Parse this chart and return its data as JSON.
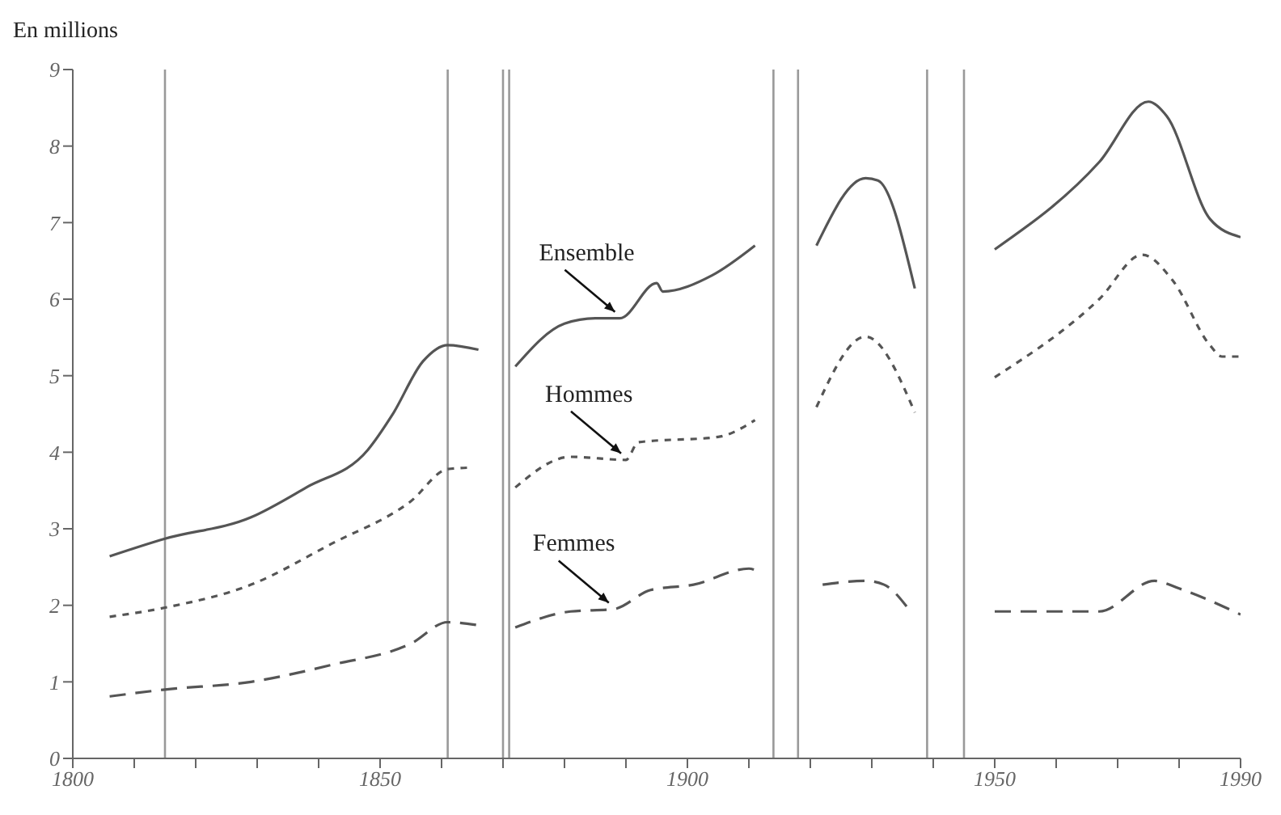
{
  "chart_data": {
    "type": "line",
    "ylabel": "En millions",
    "xlim": [
      1800,
      1990
    ],
    "ylim": [
      0,
      9
    ],
    "xticks": [
      1800,
      {
        "value": 1810,
        "label": null
      },
      {
        "value": 1820,
        "label": null
      },
      {
        "value": 1830,
        "label": null
      },
      {
        "value": 1840,
        "label": null
      },
      1850,
      {
        "value": 1860,
        "label": null
      },
      {
        "value": 1870,
        "label": null
      },
      {
        "value": 1880,
        "label": null
      },
      {
        "value": 1890,
        "label": null
      },
      1900,
      {
        "value": 1910,
        "label": null
      },
      {
        "value": 1920,
        "label": null
      },
      {
        "value": 1930,
        "label": null
      },
      {
        "value": 1940,
        "label": null
      },
      1950,
      {
        "value": 1960,
        "label": null
      },
      {
        "value": 1970,
        "label": null
      },
      {
        "value": 1980,
        "label": null
      },
      1990
    ],
    "yticks": [
      0,
      1,
      2,
      3,
      4,
      5,
      6,
      7,
      8,
      9
    ],
    "legend": false,
    "marker": "none",
    "series": [
      {
        "name": "Ensemble",
        "color": "#555555",
        "line_style": "solid",
        "x": [
          1806,
          1815,
          1829,
          1838,
          1848,
          1852,
          1857,
          1861,
          1866,
          1868,
          1872,
          1880,
          1885,
          1889,
          1895,
          1896,
          1904,
          1911,
          1915,
          1921,
          1929,
          1931,
          1937,
          1943,
          1950,
          1967,
          1975,
          1978,
          1985,
          1990
        ],
        "values": [
          2.64,
          2.87,
          3.15,
          3.54,
          4.03,
          4.49,
          5.19,
          5.4,
          5.34,
          null,
          5.12,
          5.68,
          5.75,
          5.75,
          6.21,
          6.1,
          6.31,
          6.7,
          null,
          6.7,
          7.58,
          7.55,
          6.14,
          null,
          6.65,
          7.79,
          8.58,
          8.39,
          7.05,
          6.81
        ]
      },
      {
        "name": "Hommes",
        "color": "#555555",
        "line_style": "dashed",
        "x": [
          1806,
          1815,
          1829,
          1842,
          1855,
          1861,
          1865,
          1868,
          1872,
          1881,
          1890,
          1892,
          1905,
          1911,
          1915,
          1921,
          1929,
          1937,
          1943,
          1950,
          1967,
          1974,
          1979,
          1985,
          1987,
          1990
        ],
        "values": [
          1.85,
          1.97,
          2.27,
          2.8,
          3.36,
          3.78,
          3.8,
          null,
          3.54,
          3.94,
          3.9,
          4.13,
          4.2,
          4.42,
          null,
          4.59,
          5.51,
          4.52,
          null,
          4.98,
          6.0,
          6.58,
          6.24,
          5.4,
          5.25,
          5.25
        ]
      },
      {
        "name": "Femmes",
        "color": "#555555",
        "line_style": "dotted",
        "x": [
          1806,
          1815,
          1829,
          1842,
          1855,
          1861,
          1866,
          1868,
          1872,
          1881,
          1888,
          1894,
          1901,
          1910,
          1911,
          1915,
          1922,
          1929,
          1932,
          1936,
          1943,
          1950,
          1967,
          1976,
          1980,
          1990
        ],
        "values": [
          0.81,
          0.9,
          1.0,
          1.22,
          1.5,
          1.78,
          1.74,
          null,
          1.71,
          1.92,
          1.95,
          2.2,
          2.27,
          2.48,
          2.46,
          null,
          2.27,
          2.32,
          2.27,
          1.95,
          null,
          1.92,
          1.92,
          2.32,
          2.22,
          1.88
        ]
      }
    ],
    "ref_lines": [
      {
        "axis": "x",
        "value": 1815,
        "color": "#999999"
      },
      {
        "axis": "x",
        "value": 1861,
        "color": "#999999"
      },
      {
        "axis": "x",
        "value": 1870,
        "color": "#999999"
      },
      {
        "axis": "x",
        "value": 1871,
        "color": "#999999"
      },
      {
        "axis": "x",
        "value": 1914,
        "color": "#999999"
      },
      {
        "axis": "x",
        "value": 1918,
        "color": "#999999"
      },
      {
        "axis": "x",
        "value": 1939,
        "color": "#999999"
      },
      {
        "axis": "x",
        "value": 1945,
        "color": "#999999"
      }
    ]
  }
}
